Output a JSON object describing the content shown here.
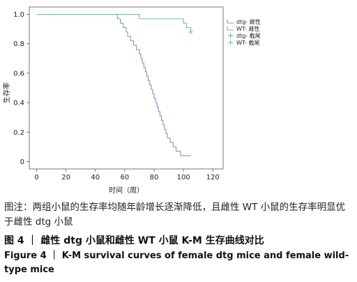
{
  "chart_data": {
    "type": "line",
    "xlabel": "时间（周）",
    "ylabel": "生存率",
    "x_ticks": [
      0,
      20,
      40,
      60,
      80,
      100,
      120
    ],
    "y_ticks": [
      0,
      0.2,
      0.4,
      0.6,
      0.8,
      1.0
    ],
    "y_tick_labels": [
      "0",
      "0.2",
      "0.4",
      "0.6",
      "0.8",
      "1.0"
    ],
    "xlim": [
      -5,
      127
    ],
    "ylim": [
      -0.05,
      1.05
    ],
    "legend_position": "top-right",
    "series": [
      {
        "name": "dtg- 雌性",
        "style": "step",
        "color": "#8d94b5",
        "x": [
          0,
          55,
          57,
          59,
          61,
          62,
          64,
          66,
          68,
          70,
          71,
          72,
          73,
          74,
          75,
          76,
          77,
          78,
          79,
          80,
          81,
          82,
          83,
          84,
          85,
          86,
          87,
          88,
          89,
          90,
          91,
          92,
          93,
          94,
          95,
          96,
          97,
          98,
          99,
          100,
          101,
          103,
          105
        ],
        "y": [
          1.0,
          0.97,
          0.94,
          0.91,
          0.88,
          0.85,
          0.82,
          0.79,
          0.76,
          0.73,
          0.7,
          0.67,
          0.64,
          0.61,
          0.58,
          0.55,
          0.52,
          0.49,
          0.46,
          0.43,
          0.4,
          0.37,
          0.34,
          0.31,
          0.28,
          0.25,
          0.22,
          0.19,
          0.16,
          0.16,
          0.13,
          0.13,
          0.1,
          0.1,
          0.07,
          0.07,
          0.07,
          0.04,
          0.04,
          0.04,
          0.04,
          0.04,
          0.04
        ]
      },
      {
        "name": "WT- 雌性",
        "style": "step",
        "color": "#7fbf90",
        "x": [
          0,
          70,
          100,
          102,
          105
        ],
        "y": [
          1.0,
          0.97,
          0.94,
          0.91,
          0.88
        ]
      },
      {
        "name": "dtg- 截尾",
        "style": "marker",
        "color": "#8d94b5",
        "x": [],
        "y": []
      },
      {
        "name": "WT- 截尾",
        "style": "marker",
        "color": "#7fbf90",
        "x": [
          105
        ],
        "y": [
          0.88
        ]
      }
    ]
  },
  "note": "图注：两组小鼠的生存率均随年龄增长逐渐降低，且雌性 WT 小鼠的生存率明显优于雌性 dtg 小鼠",
  "caption_cn": "图 4 ｜ 雌性 dtg 小鼠和雌性 WT 小鼠 K-M 生存曲线对比",
  "caption_en": "Figure 4 ｜ K-M survival curves of female dtg mice and female wild-type mice"
}
